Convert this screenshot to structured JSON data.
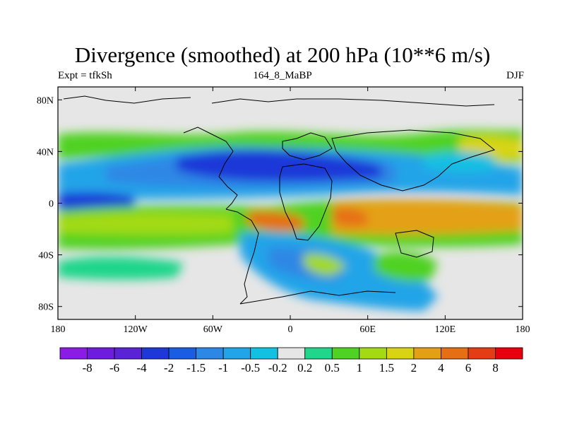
{
  "header": {
    "title": "Divergence (smoothed) at 200 hPa (10**6 m/s)",
    "left": "Expt = tfkSh",
    "center": "164_8_MaBP",
    "right": "DJF"
  },
  "chart_data": {
    "type": "heatmap",
    "title": "Divergence (smoothed) at 200 hPa (10**6 m/s)",
    "projection": "cylindrical equidistant",
    "x_range": [
      -180,
      180
    ],
    "y_range": [
      -90,
      90
    ],
    "x_ticks": [
      {
        "value": -180,
        "label": "180"
      },
      {
        "value": -120,
        "label": "120W"
      },
      {
        "value": -60,
        "label": "60W"
      },
      {
        "value": 0,
        "label": "0"
      },
      {
        "value": 60,
        "label": "60E"
      },
      {
        "value": 120,
        "label": "120E"
      },
      {
        "value": 180,
        "label": "180"
      }
    ],
    "y_ticks": [
      {
        "value": 80,
        "label": "80N"
      },
      {
        "value": 40,
        "label": "40N"
      },
      {
        "value": 0,
        "label": "0"
      },
      {
        "value": -40,
        "label": "40S"
      },
      {
        "value": -80,
        "label": "80S"
      }
    ],
    "colorbar": {
      "labels": [
        "-8",
        "-6",
        "-4",
        "-2",
        "-1.5",
        "-1",
        "-0.5",
        "-0.2",
        "0.2",
        "0.5",
        "1",
        "1.5",
        "2",
        "4",
        "6",
        "8"
      ],
      "colors": [
        "#8a1ce6",
        "#6e1cdd",
        "#5a23d6",
        "#1e37d8",
        "#1a5ce2",
        "#2d87e5",
        "#21a4e8",
        "#12c0e2",
        "#e6e6e6",
        "#1fd68a",
        "#4fd224",
        "#a3da14",
        "#d8d414",
        "#e4a015",
        "#e66e14",
        "#e43c14",
        "#e8000e"
      ]
    },
    "background_color": "#e6e6e6",
    "regions": [
      {
        "desc": "NH subtropical jet exit convergence band",
        "lon": [
          -180,
          180
        ],
        "lat": [
          20,
          40
        ],
        "level": -1
      },
      {
        "desc": "strong convergence over N Atlantic / Sahara",
        "lon": [
          -75,
          60
        ],
        "lat": [
          22,
          38
        ],
        "level": -2
      },
      {
        "desc": "equatorial convergence central Pacific",
        "lon": [
          -180,
          -130
        ],
        "lat": [
          -4,
          4
        ],
        "level": -2
      },
      {
        "desc": "NH midlatitude divergence belt",
        "lon": [
          -180,
          180
        ],
        "lat": [
          40,
          55
        ],
        "level": 0.5
      },
      {
        "desc": "SH tropical divergence belt",
        "lon": [
          -180,
          180
        ],
        "lat": [
          -32,
          -4
        ],
        "level": 1
      },
      {
        "desc": "strong divergence Indian Ocean / Africa",
        "lon": [
          40,
          125
        ],
        "lat": [
          -22,
          -4
        ],
        "level": 2
      },
      {
        "desc": "strong divergence S Atlantic",
        "lon": [
          -40,
          0
        ],
        "lat": [
          -22,
          -8
        ],
        "level": 4
      },
      {
        "desc": "SH midlatitude convergence",
        "lon": [
          -20,
          60
        ],
        "lat": [
          -75,
          -25
        ],
        "level": -1
      },
      {
        "desc": "divergence S Indian Ocean",
        "lon": [
          70,
          110
        ],
        "lat": [
          -60,
          -35
        ],
        "level": 1
      }
    ]
  }
}
